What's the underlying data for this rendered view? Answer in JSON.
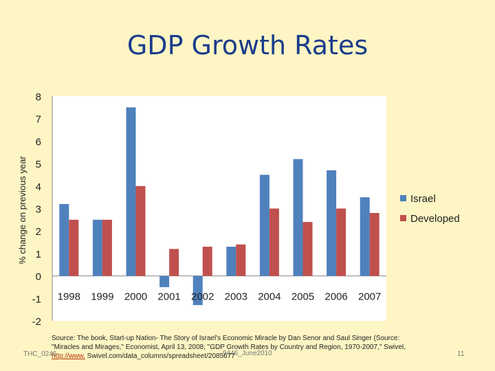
{
  "slide": {
    "title": "GDP Growth Rates",
    "source_prefix": "Source: The book, Start-up Nation- The Story of Israel's Economic Miracle by Dan Senor and Saul Singer (Source: \"Miracles and Mirages,\" Economist, April 13, 2008; \"GDP Growth Rates by Country and Region, 1970-2007,\" Swivel, ",
    "source_link": "http://www.",
    "source_suffix": " Swivel.com/data_columns/spreadsheet/2085677",
    "footer_left": "THC_0246",
    "footer_center": "9446_June2010",
    "page_number": "11"
  },
  "colors": {
    "background": "#fdf5c4",
    "plot_background": "#ffffff",
    "israel": "#4f81bd",
    "developed": "#c0504d",
    "title": "#1a3c8c"
  },
  "chart_data": {
    "type": "bar",
    "title": "GDP Growth Rates",
    "xlabel": "",
    "ylabel": "% change on previous year",
    "ylim": [
      -2,
      8
    ],
    "yticks": [
      "8",
      "7",
      "6",
      "5",
      "4",
      "3",
      "2",
      "1",
      "0",
      "-1",
      "-2"
    ],
    "categories": [
      "1998",
      "1999",
      "2000",
      "2001",
      "2002",
      "2003",
      "2004",
      "2005",
      "2006",
      "2007"
    ],
    "series": [
      {
        "name": "Israel",
        "color": "#4f81bd",
        "values": [
          3.2,
          2.5,
          7.5,
          -0.5,
          -1.3,
          1.3,
          4.5,
          5.2,
          4.7,
          3.5
        ]
      },
      {
        "name": "Developed",
        "color": "#c0504d",
        "values": [
          2.5,
          2.5,
          4.0,
          1.2,
          1.3,
          1.4,
          3.0,
          2.4,
          3.0,
          2.8
        ]
      }
    ],
    "legend_position": "right",
    "grid": false
  }
}
